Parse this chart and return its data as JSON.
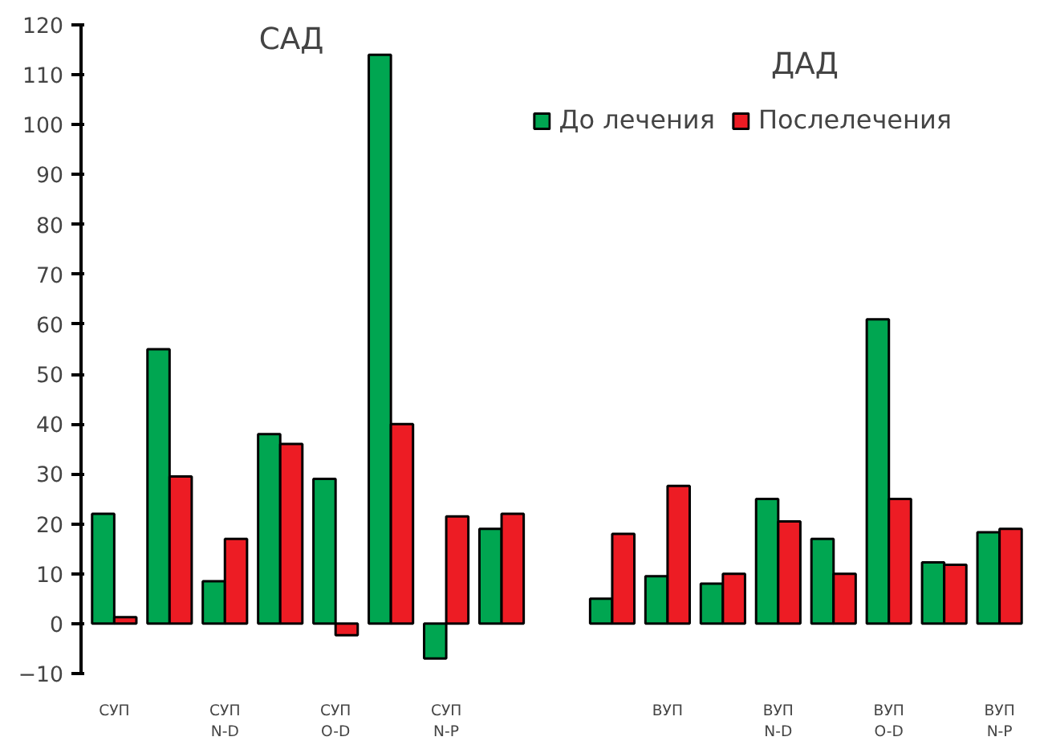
{
  "chart_data": {
    "type": "bar",
    "categories": [
      "СУП",
      null,
      "СУП\nN-D",
      null,
      "СУП\nO-D",
      null,
      "СУП\nN-P",
      null,
      null,
      null,
      "ВУП",
      null,
      "ВУП\nN-D",
      null,
      "ВУП\nO-D",
      null,
      "ВУП\nN-P"
    ],
    "series": [
      {
        "name": "До лечения",
        "color": "#00a651",
        "values": [
          22,
          55,
          8.5,
          38,
          29,
          114,
          -7,
          19,
          null,
          5,
          9.5,
          8,
          25,
          17,
          61,
          12.3,
          18.3
        ]
      },
      {
        "name": "Послелечения",
        "color": "#ed1c24",
        "values": [
          1.3,
          29.5,
          17,
          36,
          -2.3,
          40,
          21.5,
          22,
          null,
          18,
          27.6,
          10,
          20.5,
          10,
          25,
          11.8,
          19
        ]
      }
    ],
    "ylim": [
      -10,
      120
    ],
    "yticks": [
      -10,
      0,
      10,
      20,
      30,
      40,
      50,
      60,
      70,
      80,
      90,
      100,
      110,
      120
    ],
    "annotations": [
      "САД",
      "ДАД"
    ],
    "legend": "top right",
    "grid": false
  }
}
